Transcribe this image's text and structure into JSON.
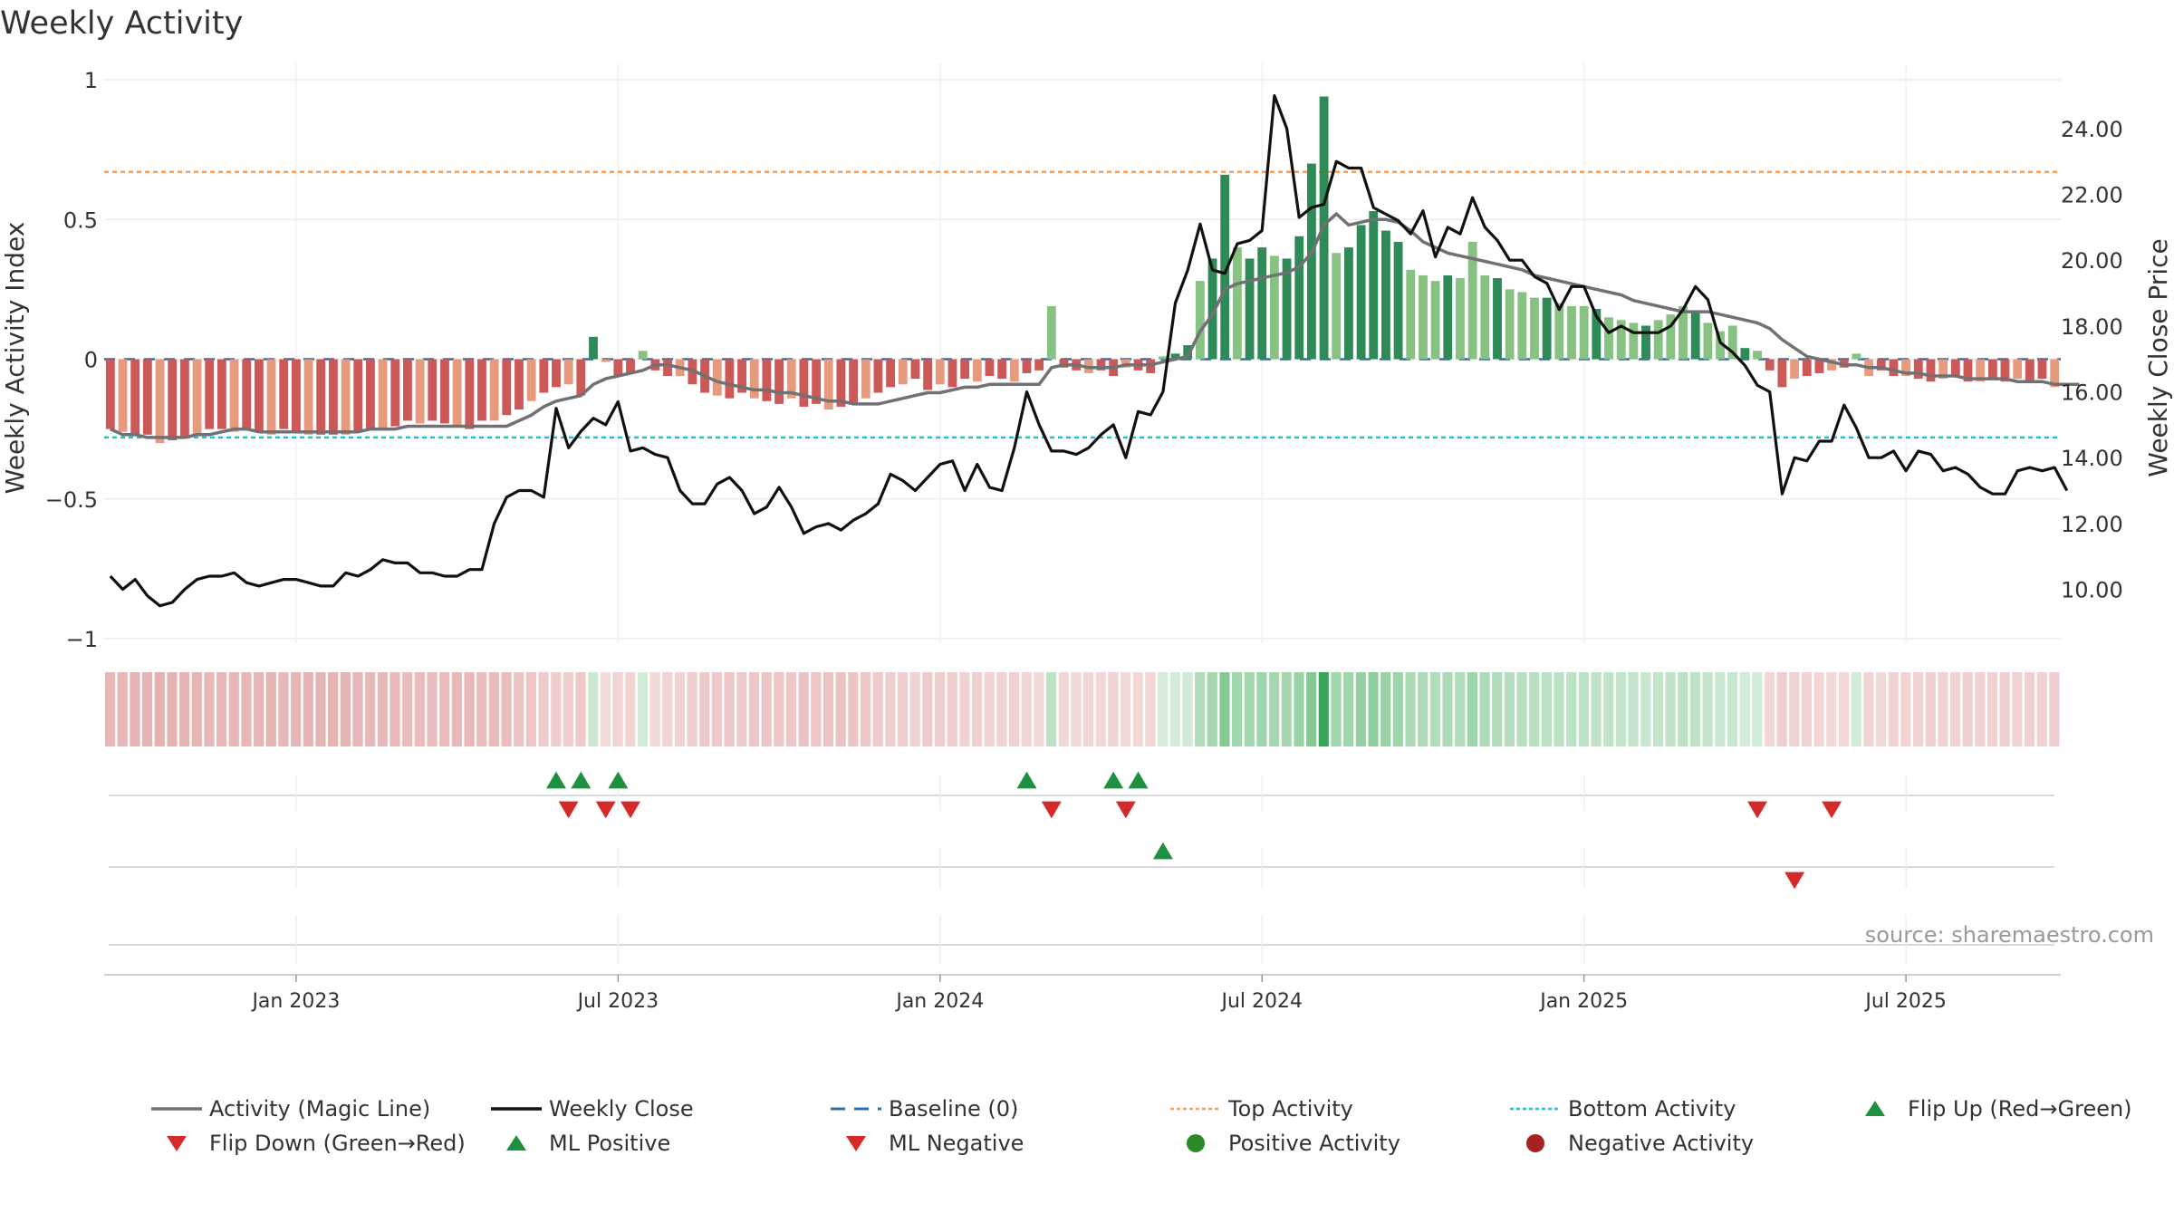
{
  "chart_data": {
    "type": "bar",
    "title": "Weekly Activity",
    "ylabel_left": "Weekly Activity Index",
    "ylabel_right": "Weekly Close Price",
    "ylim_left": [
      -1,
      1
    ],
    "yticks_left": [
      1,
      0.5,
      0,
      -0.5,
      -1
    ],
    "ytick_labels_left": [
      "1",
      "0.5",
      "0",
      "−0.5",
      "−1"
    ],
    "ylim_right": [
      8.5,
      26.2
    ],
    "yticks_right": [
      10,
      12,
      14,
      16,
      18,
      20,
      22,
      24
    ],
    "ytick_labels_right": [
      "10.00",
      "12.00",
      "14.00",
      "16.00",
      "18.00",
      "20.00",
      "22.00",
      "24.00"
    ],
    "x_ticks": [
      "Jan 2023",
      "Jul 2023",
      "Jan 2024",
      "Jul 2024",
      "Jan 2025",
      "Jul 2025"
    ],
    "x_tick_weeks": [
      15,
      41,
      67,
      93,
      119,
      145
    ],
    "top_activity": 0.67,
    "bottom_activity": -0.28,
    "baseline": 0,
    "source": "source: sharemaestro.com",
    "activity": [
      -0.25,
      -0.26,
      -0.27,
      -0.27,
      -0.3,
      -0.29,
      -0.28,
      -0.27,
      -0.25,
      -0.25,
      -0.26,
      -0.25,
      -0.26,
      -0.27,
      -0.25,
      -0.26,
      -0.27,
      -0.27,
      -0.27,
      -0.27,
      -0.26,
      -0.25,
      -0.25,
      -0.24,
      -0.22,
      -0.23,
      -0.22,
      -0.23,
      -0.24,
      -0.25,
      -0.22,
      -0.22,
      -0.2,
      -0.18,
      -0.15,
      -0.12,
      -0.1,
      -0.09,
      -0.13,
      0.08,
      -0.01,
      -0.06,
      -0.05,
      0.03,
      -0.04,
      -0.06,
      -0.06,
      -0.09,
      -0.12,
      -0.13,
      -0.14,
      -0.12,
      -0.14,
      -0.15,
      -0.16,
      -0.14,
      -0.17,
      -0.16,
      -0.18,
      -0.17,
      -0.16,
      -0.14,
      -0.12,
      -0.1,
      -0.09,
      -0.07,
      -0.11,
      -0.09,
      -0.1,
      -0.07,
      -0.08,
      -0.06,
      -0.07,
      -0.08,
      -0.05,
      -0.04,
      0.19,
      -0.03,
      -0.04,
      -0.05,
      -0.04,
      -0.06,
      -0.03,
      -0.04,
      -0.05,
      0.01,
      0.02,
      0.05,
      0.28,
      0.36,
      0.66,
      0.4,
      0.36,
      0.4,
      0.37,
      0.36,
      0.44,
      0.7,
      0.94,
      0.38,
      0.4,
      0.48,
      0.53,
      0.46,
      0.42,
      0.32,
      0.3,
      0.28,
      0.3,
      0.29,
      0.42,
      0.3,
      0.29,
      0.25,
      0.24,
      0.22,
      0.22,
      0.2,
      0.19,
      0.19,
      0.18,
      0.15,
      0.14,
      0.13,
      0.12,
      0.14,
      0.16,
      0.19,
      0.17,
      0.13,
      0.1,
      0.12,
      0.04,
      0.03,
      -0.04,
      -0.1,
      -0.07,
      -0.06,
      -0.05,
      -0.04,
      -0.03,
      0.02,
      -0.06,
      -0.04,
      -0.06,
      -0.06,
      -0.07,
      -0.08,
      -0.07,
      -0.06,
      -0.08,
      -0.08,
      -0.07,
      -0.08,
      -0.07,
      -0.08,
      -0.07,
      -0.1
    ],
    "magic_line": [
      -0.25,
      -0.27,
      -0.27,
      -0.28,
      -0.28,
      -0.28,
      -0.28,
      -0.27,
      -0.27,
      -0.26,
      -0.25,
      -0.25,
      -0.26,
      -0.26,
      -0.26,
      -0.26,
      -0.26,
      -0.26,
      -0.26,
      -0.26,
      -0.26,
      -0.25,
      -0.25,
      -0.25,
      -0.24,
      -0.24,
      -0.24,
      -0.24,
      -0.24,
      -0.24,
      -0.24,
      -0.24,
      -0.24,
      -0.22,
      -0.2,
      -0.17,
      -0.15,
      -0.14,
      -0.13,
      -0.09,
      -0.07,
      -0.06,
      -0.05,
      -0.04,
      -0.02,
      -0.02,
      -0.03,
      -0.04,
      -0.06,
      -0.08,
      -0.09,
      -0.1,
      -0.11,
      -0.11,
      -0.12,
      -0.12,
      -0.13,
      -0.14,
      -0.15,
      -0.15,
      -0.16,
      -0.16,
      -0.16,
      -0.15,
      -0.14,
      -0.13,
      -0.12,
      -0.12,
      -0.11,
      -0.1,
      -0.1,
      -0.09,
      -0.09,
      -0.09,
      -0.09,
      -0.09,
      -0.03,
      -0.02,
      -0.02,
      -0.03,
      -0.03,
      -0.03,
      -0.02,
      -0.02,
      -0.02,
      -0.01,
      0,
      0.01,
      0.1,
      0.16,
      0.25,
      0.27,
      0.28,
      0.29,
      0.3,
      0.31,
      0.33,
      0.38,
      0.48,
      0.52,
      0.48,
      0.49,
      0.5,
      0.5,
      0.49,
      0.46,
      0.42,
      0.4,
      0.38,
      0.37,
      0.36,
      0.35,
      0.34,
      0.33,
      0.32,
      0.3,
      0.29,
      0.28,
      0.27,
      0.26,
      0.25,
      0.24,
      0.23,
      0.21,
      0.2,
      0.19,
      0.18,
      0.17,
      0.17,
      0.17,
      0.16,
      0.15,
      0.14,
      0.13,
      0.11,
      0.07,
      0.04,
      0.01,
      0,
      -0.01,
      -0.02,
      -0.02,
      -0.03,
      -0.03,
      -0.04,
      -0.05,
      -0.05,
      -0.06,
      -0.06,
      -0.06,
      -0.07,
      -0.07,
      -0.07,
      -0.07,
      -0.08,
      -0.08,
      -0.08,
      -0.09,
      -0.09,
      -0.09
    ],
    "weekly_close": [
      10.4,
      10.0,
      10.3,
      9.8,
      9.5,
      9.6,
      10.0,
      10.3,
      10.4,
      10.4,
      10.5,
      10.2,
      10.1,
      10.2,
      10.3,
      10.3,
      10.2,
      10.1,
      10.1,
      10.5,
      10.4,
      10.6,
      10.9,
      10.8,
      10.8,
      10.5,
      10.5,
      10.4,
      10.4,
      10.6,
      10.6,
      12.0,
      12.8,
      13.0,
      13.0,
      12.8,
      15.5,
      14.3,
      14.8,
      15.2,
      15.0,
      15.7,
      14.2,
      14.3,
      14.1,
      14.0,
      13.0,
      12.6,
      12.6,
      13.2,
      13.4,
      13.0,
      12.3,
      12.5,
      13.1,
      12.5,
      11.7,
      11.9,
      12.0,
      11.8,
      12.1,
      12.3,
      12.6,
      13.5,
      13.3,
      13.0,
      13.4,
      13.8,
      13.9,
      13.0,
      13.8,
      13.1,
      13.0,
      14.3,
      16.0,
      15.0,
      14.2,
      14.2,
      14.1,
      14.3,
      14.7,
      15.0,
      14.0,
      15.4,
      15.3,
      16.0,
      18.7,
      19.7,
      21.1,
      19.7,
      19.6,
      20.5,
      20.6,
      20.9,
      25.0,
      24.0,
      21.3,
      21.6,
      21.7,
      23.0,
      22.8,
      22.8,
      21.6,
      21.4,
      21.2,
      20.8,
      21.5,
      20.1,
      21.0,
      20.8,
      21.9,
      21.0,
      20.6,
      20.0,
      20.0,
      19.5,
      19.3,
      18.5,
      19.2,
      19.2,
      18.3,
      17.8,
      18.0,
      17.8,
      17.8,
      17.8,
      18.0,
      18.5,
      19.2,
      18.8,
      17.5,
      17.2,
      16.8,
      16.2,
      16.0,
      12.9,
      14.0,
      13.9,
      14.5,
      14.5,
      15.6,
      14.9,
      14.0,
      14.0,
      14.2,
      13.6,
      14.2,
      14.1,
      13.6,
      13.7,
      13.5,
      13.1,
      12.9,
      12.9,
      13.6,
      13.7,
      13.6,
      13.7,
      13.0
    ],
    "flip_up_weeks": [
      36,
      38,
      41,
      74,
      81,
      83
    ],
    "flip_down_weeks": [
      37,
      40,
      42,
      76,
      82,
      133,
      139
    ],
    "ml_positive_weeks": [
      85
    ],
    "ml_negative_weeks": [
      136
    ],
    "positive_activity_weeks": [],
    "negative_activity_weeks": [],
    "legend": [
      {
        "label": "Activity (Magic Line)",
        "symbol": "line",
        "color": "#707075"
      },
      {
        "label": "Weekly Close",
        "symbol": "line",
        "color": "#111111"
      },
      {
        "label": "Baseline (0)",
        "symbol": "dash",
        "color": "#2a6fb0"
      },
      {
        "label": "Top Activity",
        "symbol": "dot",
        "color": "#f0a060"
      },
      {
        "label": "Bottom Activity",
        "symbol": "dot",
        "color": "#22c0d8"
      },
      {
        "label": "Flip Up (Red→Green)",
        "symbol": "tri-up",
        "color": "#1e9140"
      },
      {
        "label": "Flip Down (Green→Red)",
        "symbol": "tri-down",
        "color": "#d42a2a"
      },
      {
        "label": "ML Positive",
        "symbol": "tri-up",
        "color": "#1e9140"
      },
      {
        "label": "ML Negative",
        "symbol": "tri-down",
        "color": "#d42a2a"
      },
      {
        "label": "Positive Activity",
        "symbol": "circle",
        "color": "#2a8a2a"
      },
      {
        "label": "Negative Activity",
        "symbol": "circle",
        "color": "#a82020"
      }
    ]
  },
  "colors": {
    "neg_strong": "#cc5858",
    "neg_light": "#e89a7e",
    "pos_strong": "#2e8b57",
    "pos_light": "#88c282",
    "magic_line": "#707075",
    "close": "#111111",
    "baseline": "#2a6fb0",
    "top": "#f0a060",
    "bottom": "#22c0d8",
    "up": "#1e9140",
    "down": "#d42a2a"
  }
}
